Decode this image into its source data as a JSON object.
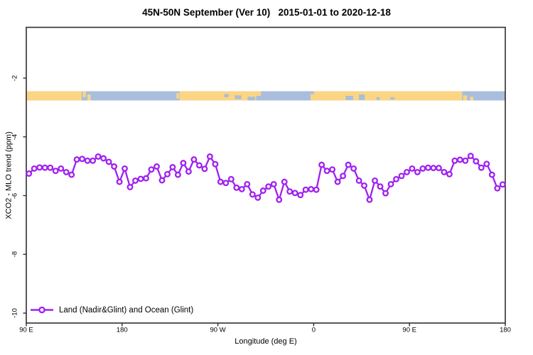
{
  "title": "45N-50N September (Ver 10)   2015-01-01 to 2020-12-18",
  "colors": {
    "series_purple": "#A020F0",
    "land": "#FAD584",
    "ocean": "#A9BEDC",
    "axis": "#2e2e2e",
    "marker_fill": "#ffffff"
  },
  "chart_data": {
    "type": "line",
    "title": "45N-50N September (Ver 10)   2015-01-01 to 2020-12-18",
    "xlabel": "Longitude (deg E)",
    "ylabel": "XCO2 - MLO trend (ppm)",
    "xlim_deg_east_unwrapped": [
      90,
      540
    ],
    "ylim": [
      -10.4,
      -0.3
    ],
    "grid": "off",
    "legend_position": "bottom-left",
    "legend": [
      {
        "label": "Land (Nadir&Glint) and Ocean (Glint)",
        "color": "#A020F0",
        "marker": "open-circle"
      }
    ],
    "xticks": [
      {
        "lon": 90,
        "label": "90 E"
      },
      {
        "lon": 180,
        "label": "180"
      },
      {
        "lon": 270,
        "label": "90 W"
      },
      {
        "lon": 360,
        "label": "0"
      },
      {
        "lon": 450,
        "label": "90 E"
      },
      {
        "lon": 540,
        "label": "180"
      }
    ],
    "yticks": [
      {
        "value": -2,
        "label": "-2"
      },
      {
        "value": -4,
        "label": "-4"
      },
      {
        "value": -6,
        "label": "-6"
      },
      {
        "value": -8,
        "label": "-8"
      },
      {
        "value": -10,
        "label": "-10"
      }
    ],
    "series": [
      {
        "name": "Land (Nadir&Glint) and Ocean (Glint)",
        "x": {
          "start_lon": 92.5,
          "step_deg": 5,
          "count": 90
        },
        "values": [
          -5.25,
          -5.08,
          -5.04,
          -5.05,
          -5.05,
          -5.16,
          -5.08,
          -5.2,
          -5.29,
          -4.77,
          -4.75,
          -4.81,
          -4.81,
          -4.67,
          -4.73,
          -4.85,
          -5.01,
          -5.53,
          -5.08,
          -5.71,
          -5.49,
          -5.43,
          -5.41,
          -5.11,
          -5.01,
          -5.48,
          -5.27,
          -5.03,
          -5.29,
          -4.89,
          -5.18,
          -4.77,
          -4.97,
          -5.09,
          -4.67,
          -4.93,
          -5.53,
          -5.57,
          -5.44,
          -5.73,
          -5.78,
          -5.61,
          -5.96,
          -6.07,
          -5.83,
          -5.69,
          -5.61,
          -6.14,
          -5.53,
          -5.86,
          -5.91,
          -5.98,
          -5.8,
          -5.78,
          -5.8,
          -4.95,
          -5.16,
          -5.11,
          -5.53,
          -5.33,
          -4.95,
          -5.08,
          -5.49,
          -5.66,
          -6.14,
          -5.49,
          -5.69,
          -5.92,
          -5.61,
          -5.44,
          -5.33,
          -5.2,
          -5.08,
          -5.2,
          -5.08,
          -5.05,
          -5.06,
          -5.06,
          -5.2,
          -5.27,
          -4.81,
          -4.78,
          -4.81,
          -4.65,
          -4.83,
          -5.05,
          -4.92,
          -5.29,
          -5.75,
          -5.62
        ]
      }
    ],
    "map_band": {
      "description": "world-map strip of the 45N-50N latitude band",
      "value_top": -2.45,
      "value_bottom": -2.76,
      "land_color": "#FAD584",
      "ocean_color": "#A9BEDC",
      "land_segments": [
        {
          "name": "asia-east",
          "lon": [
            90,
            142
          ],
          "t": [
            0,
            1
          ]
        },
        {
          "name": "sakhalin-hokkaido",
          "lon": [
            143,
            146
          ],
          "t": [
            0,
            0.65
          ]
        },
        {
          "name": "japan-coast-islands",
          "lon": [
            147.5,
            150.5
          ],
          "t": [
            0.35,
            1
          ]
        },
        {
          "name": "vancouver-island",
          "lon": [
            231,
            233.5
          ],
          "t": [
            0.2,
            0.8
          ]
        },
        {
          "name": "north-america",
          "lon": [
            234,
            306
          ],
          "t": [
            0,
            1
          ]
        },
        {
          "name": "newfoundland",
          "lon": [
            306,
            310.5
          ],
          "t": [
            0,
            0.5
          ]
        },
        {
          "name": "europe-asia",
          "lon": [
            357,
            499.5
          ],
          "t": [
            0,
            1
          ]
        },
        {
          "name": "coast-islands",
          "lon": [
            500.5,
            504
          ],
          "t": [
            0.45,
            1
          ]
        },
        {
          "name": "kuril-islands",
          "lon": [
            507,
            510
          ],
          "t": [
            0.6,
            1
          ]
        }
      ],
      "water_patches": [
        {
          "name": "gulf-st-lawrence-1",
          "lon": [
            276,
            280
          ],
          "t": [
            0.3,
            0.65
          ]
        },
        {
          "name": "gulf-st-lawrence-2",
          "lon": [
            286,
            292
          ],
          "t": [
            0.45,
            0.85
          ]
        },
        {
          "name": "atlantic-inlet",
          "lon": [
            298,
            305
          ],
          "t": [
            0.6,
            1
          ]
        },
        {
          "name": "english-channel",
          "lon": [
            357,
            360.5
          ],
          "t": [
            0,
            0.3
          ]
        },
        {
          "name": "black-sea",
          "lon": [
            390,
            397
          ],
          "t": [
            0.5,
            0.95
          ]
        },
        {
          "name": "caspian-sea",
          "lon": [
            402.5,
            408
          ],
          "t": [
            0.35,
            0.95
          ]
        },
        {
          "name": "aral-sea",
          "lon": [
            419,
            422
          ],
          "t": [
            0.65,
            0.95
          ]
        },
        {
          "name": "lake-balkhash",
          "lon": [
            432,
            436
          ],
          "t": [
            0.65,
            0.9
          ]
        }
      ]
    }
  }
}
